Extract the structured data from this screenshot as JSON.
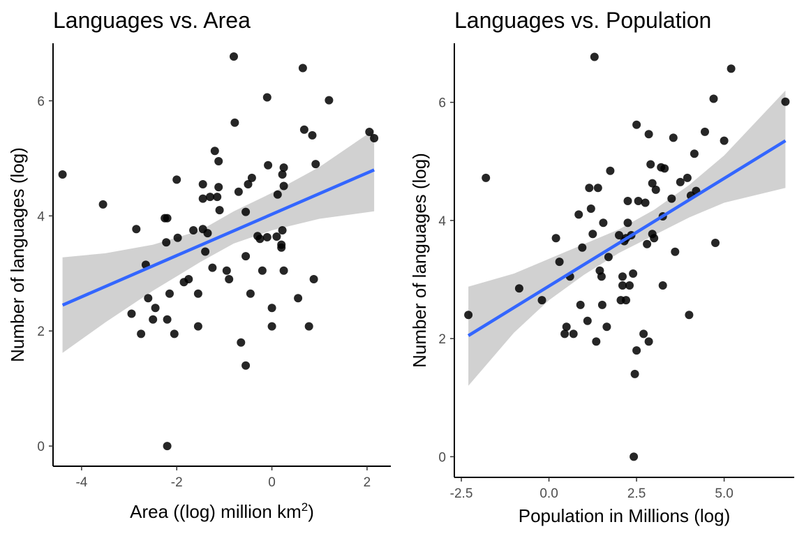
{
  "colors": {
    "point": "#000000",
    "fit_line": "#3366FF",
    "ribbon": "#CCCCCC",
    "background": "#FFFFFF"
  },
  "chart_data": [
    {
      "type": "scatter",
      "title": "Languages vs. Area",
      "xlabel": "Area ((log) million km",
      "xlabel_sup": "2",
      "xlabel_end": ")",
      "ylabel": "Number of languages (log)",
      "xlim": [
        -4.6,
        2.5
      ],
      "ylim": [
        -0.35,
        7.0
      ],
      "xticks": [
        -4,
        -2,
        0,
        2
      ],
      "xtick_labels": [
        "-4",
        "-2",
        "0",
        "2"
      ],
      "yticks": [
        0,
        2,
        4,
        6
      ],
      "ytick_labels": [
        "0",
        "2",
        "4",
        "6"
      ],
      "grid": false,
      "fit": {
        "x": [
          -4.4,
          2.15
        ],
        "y": [
          2.45,
          4.8
        ]
      },
      "ribbon": {
        "x": [
          -4.4,
          -3.5,
          -2.5,
          -1.5,
          -0.8,
          0.0,
          1.0,
          2.15
        ],
        "lower": [
          1.62,
          2.15,
          2.7,
          3.2,
          3.52,
          3.75,
          3.95,
          4.08
        ],
        "upper": [
          3.28,
          3.35,
          3.5,
          3.75,
          4.08,
          4.4,
          4.85,
          5.5
        ]
      },
      "points": [
        [
          -4.4,
          4.72
        ],
        [
          -3.55,
          4.2
        ],
        [
          -2.95,
          2.3
        ],
        [
          -2.85,
          3.77
        ],
        [
          -2.75,
          1.95
        ],
        [
          -2.65,
          3.15
        ],
        [
          -2.6,
          2.57
        ],
        [
          -2.5,
          2.2
        ],
        [
          -2.45,
          2.4
        ],
        [
          -2.25,
          3.96
        ],
        [
          -2.22,
          3.54
        ],
        [
          -2.2,
          3.96
        ],
        [
          -2.2,
          2.2
        ],
        [
          -2.2,
          0.0
        ],
        [
          -2.15,
          2.65
        ],
        [
          -2.05,
          1.95
        ],
        [
          -2.0,
          4.63
        ],
        [
          -1.98,
          3.62
        ],
        [
          -1.85,
          2.85
        ],
        [
          -1.75,
          2.9
        ],
        [
          -1.65,
          3.75
        ],
        [
          -1.55,
          2.65
        ],
        [
          -1.55,
          2.08
        ],
        [
          -1.45,
          4.55
        ],
        [
          -1.45,
          3.77
        ],
        [
          -1.45,
          4.3
        ],
        [
          -1.4,
          3.38
        ],
        [
          -1.35,
          3.7
        ],
        [
          -1.3,
          4.33
        ],
        [
          -1.25,
          3.1
        ],
        [
          -1.2,
          5.13
        ],
        [
          -1.15,
          4.33
        ],
        [
          -1.12,
          4.95
        ],
        [
          -1.12,
          4.5
        ],
        [
          -1.1,
          4.1
        ],
        [
          -0.95,
          3.05
        ],
        [
          -0.9,
          2.9
        ],
        [
          -0.8,
          6.77
        ],
        [
          -0.78,
          5.62
        ],
        [
          -0.7,
          4.42
        ],
        [
          -0.65,
          1.8
        ],
        [
          -0.55,
          4.07
        ],
        [
          -0.55,
          3.3
        ],
        [
          -0.55,
          1.4
        ],
        [
          -0.5,
          4.55
        ],
        [
          -0.45,
          2.65
        ],
        [
          -0.42,
          4.66
        ],
        [
          -0.3,
          3.65
        ],
        [
          -0.25,
          3.6
        ],
        [
          -0.2,
          3.05
        ],
        [
          -0.1,
          3.63
        ],
        [
          -0.1,
          6.06
        ],
        [
          -0.08,
          4.88
        ],
        [
          0.0,
          2.4
        ],
        [
          0.0,
          2.08
        ],
        [
          0.1,
          3.64
        ],
        [
          0.12,
          4.37
        ],
        [
          0.2,
          3.45
        ],
        [
          0.2,
          3.5
        ],
        [
          0.22,
          4.72
        ],
        [
          0.22,
          3.75
        ],
        [
          0.25,
          4.84
        ],
        [
          0.25,
          4.52
        ],
        [
          0.25,
          3.05
        ],
        [
          0.55,
          2.57
        ],
        [
          0.65,
          6.57
        ],
        [
          0.68,
          5.5
        ],
        [
          0.78,
          2.08
        ],
        [
          0.85,
          5.4
        ],
        [
          0.88,
          2.9
        ],
        [
          0.92,
          4.9
        ],
        [
          1.2,
          6.01
        ],
        [
          2.05,
          5.46
        ],
        [
          2.15,
          5.35
        ]
      ]
    },
    {
      "type": "scatter",
      "title": "Languages vs. Population",
      "xlabel": "Population in Millions (log)",
      "ylabel": "Number of languages (log)",
      "xlim": [
        -2.7,
        7.0
      ],
      "ylim": [
        -0.35,
        7.0
      ],
      "xticks": [
        -2.5,
        0.0,
        2.5,
        5.0
      ],
      "xtick_labels": [
        "-2.5",
        "0.0",
        "2.5",
        "5.0"
      ],
      "yticks": [
        0,
        2,
        4,
        6
      ],
      "ytick_labels": [
        "0",
        "2",
        "4",
        "6"
      ],
      "grid": false,
      "fit": {
        "x": [
          -2.3,
          6.75
        ],
        "y": [
          2.05,
          5.35
        ]
      },
      "ribbon": {
        "x": [
          -2.3,
          -1.0,
          0.0,
          1.0,
          2.0,
          3.0,
          4.0,
          5.0,
          6.75
        ],
        "lower": [
          1.2,
          2.1,
          2.65,
          3.08,
          3.45,
          3.75,
          4.05,
          4.3,
          4.55
        ],
        "upper": [
          2.88,
          3.1,
          3.35,
          3.6,
          3.85,
          4.18,
          4.6,
          5.1,
          6.2
        ]
      },
      "points": [
        [
          -2.3,
          2.4
        ],
        [
          -1.8,
          4.72
        ],
        [
          -0.85,
          2.85
        ],
        [
          -0.2,
          2.65
        ],
        [
          0.2,
          3.7
        ],
        [
          0.3,
          3.3
        ],
        [
          0.45,
          2.08
        ],
        [
          0.5,
          2.2
        ],
        [
          0.6,
          3.05
        ],
        [
          0.7,
          2.08
        ],
        [
          0.85,
          4.1
        ],
        [
          0.9,
          2.57
        ],
        [
          0.95,
          3.54
        ],
        [
          1.1,
          2.3
        ],
        [
          1.15,
          4.55
        ],
        [
          1.2,
          4.2
        ],
        [
          1.25,
          3.77
        ],
        [
          1.3,
          6.77
        ],
        [
          1.35,
          1.95
        ],
        [
          1.4,
          4.55
        ],
        [
          1.45,
          3.15
        ],
        [
          1.5,
          3.05
        ],
        [
          1.52,
          2.57
        ],
        [
          1.55,
          3.96
        ],
        [
          1.65,
          2.2
        ],
        [
          1.7,
          3.38
        ],
        [
          1.75,
          4.84
        ],
        [
          2.0,
          3.75
        ],
        [
          2.05,
          2.65
        ],
        [
          2.1,
          3.05
        ],
        [
          2.1,
          2.9
        ],
        [
          2.15,
          3.65
        ],
        [
          2.2,
          2.65
        ],
        [
          2.2,
          3.7
        ],
        [
          2.25,
          4.33
        ],
        [
          2.25,
          3.96
        ],
        [
          2.3,
          2.9
        ],
        [
          2.35,
          3.75
        ],
        [
          2.4,
          3.1
        ],
        [
          2.42,
          0.0
        ],
        [
          2.45,
          1.4
        ],
        [
          2.5,
          5.62
        ],
        [
          2.5,
          1.8
        ],
        [
          2.55,
          4.33
        ],
        [
          2.7,
          2.08
        ],
        [
          2.75,
          4.3
        ],
        [
          2.8,
          3.6
        ],
        [
          2.85,
          5.46
        ],
        [
          2.85,
          1.95
        ],
        [
          2.9,
          4.95
        ],
        [
          2.95,
          3.77
        ],
        [
          2.95,
          4.63
        ],
        [
          3.0,
          3.7
        ],
        [
          3.05,
          4.52
        ],
        [
          3.2,
          4.9
        ],
        [
          3.25,
          2.9
        ],
        [
          3.25,
          4.07
        ],
        [
          3.3,
          4.88
        ],
        [
          3.5,
          4.37
        ],
        [
          3.55,
          5.4
        ],
        [
          3.6,
          3.47
        ],
        [
          3.75,
          4.65
        ],
        [
          3.95,
          4.72
        ],
        [
          4.0,
          2.4
        ],
        [
          4.05,
          4.42
        ],
        [
          4.15,
          5.13
        ],
        [
          4.2,
          4.5
        ],
        [
          4.45,
          5.5
        ],
        [
          4.7,
          6.06
        ],
        [
          4.75,
          3.62
        ],
        [
          5.0,
          5.35
        ],
        [
          5.2,
          6.57
        ],
        [
          6.75,
          6.01
        ]
      ]
    }
  ]
}
